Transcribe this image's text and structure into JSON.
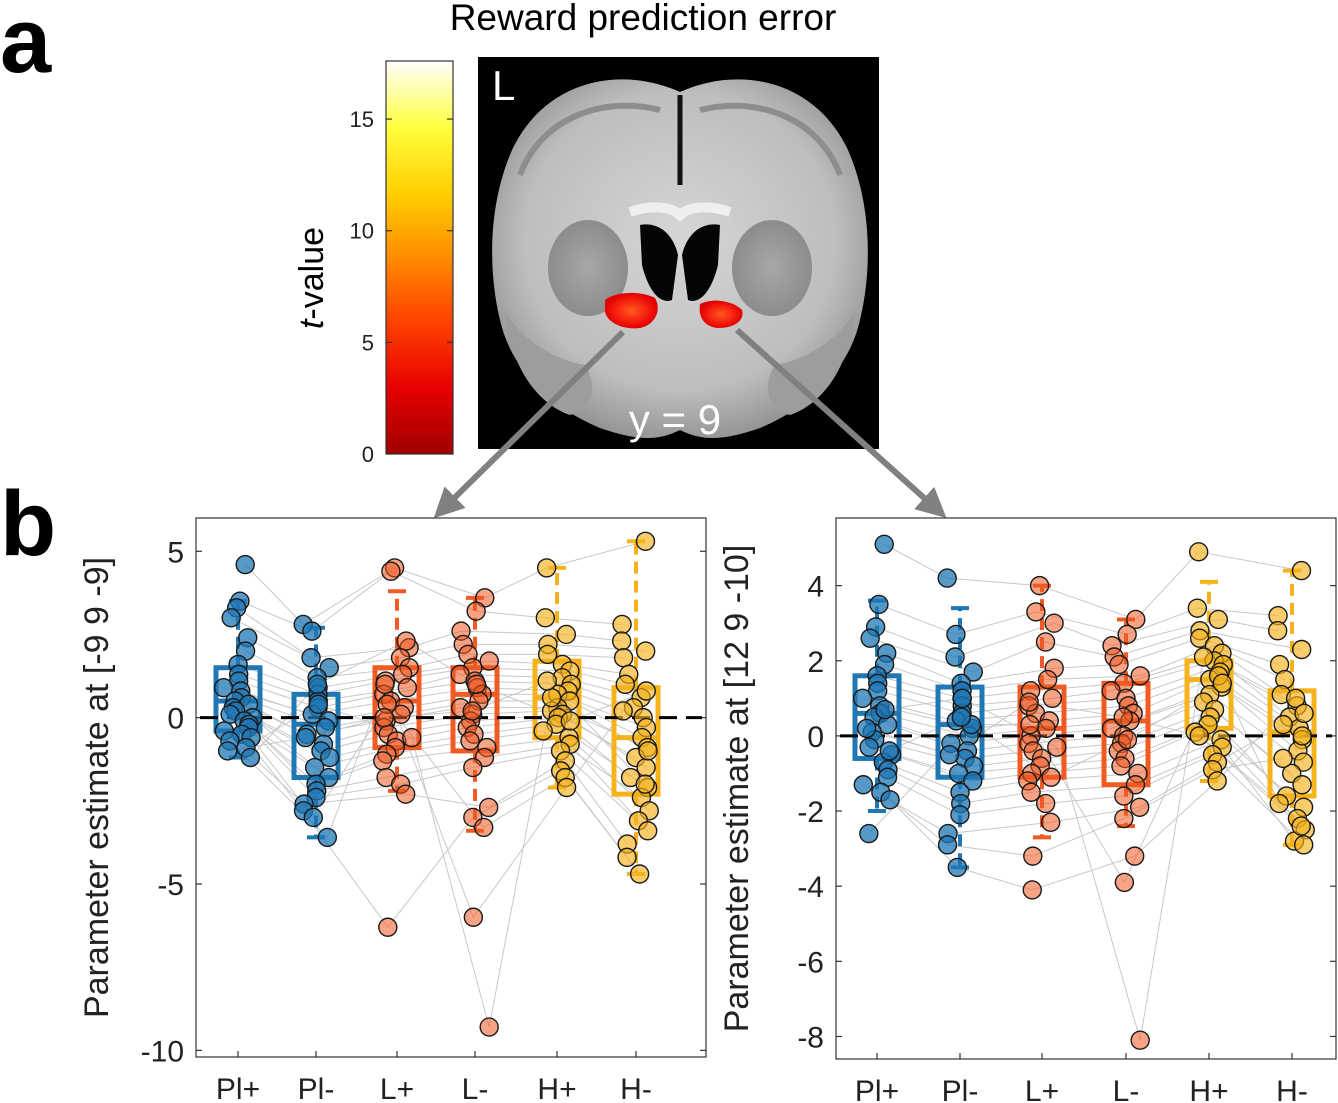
{
  "figure": {
    "panel_a_letter": "a",
    "panel_b_letter": "b",
    "title": "Reward prediction error",
    "colorbar": {
      "label_italic": "t",
      "label_rest": "-value",
      "ticks": [
        "0",
        "5",
        "10",
        "15"
      ],
      "range": [
        0,
        17.6
      ],
      "colormap": [
        "#a00000",
        "#e60000",
        "#ff4000",
        "#ff8c00",
        "#ffd000",
        "#ffff40",
        "#ffffff"
      ]
    },
    "brain": {
      "hemisphere_label": "L",
      "slice_label": "y = 9"
    }
  },
  "colors": {
    "Pl": "#1f77b4",
    "L": "#f15a22",
    "H": "#f6b21b",
    "arrow": "#808080",
    "pair_line": "#c8c8c8"
  },
  "chart_data": [
    {
      "type": "box",
      "ylabel": "Parameter estimate at [-9  9 -9]",
      "categories": [
        "Pl+",
        "Pl-",
        "L+",
        "L-",
        "H+",
        "H-"
      ],
      "ylim": [
        -10.2,
        6.0
      ],
      "yticks": [
        5,
        0,
        -5,
        -10
      ],
      "ytick_labels": [
        "5",
        "0",
        "-5",
        "-10"
      ],
      "zero_line": "dashed",
      "boxes": [
        {
          "q1": -0.4,
          "median": 0.5,
          "q3": 1.5,
          "whisker_low": -1.2,
          "whisker_high": 3.5,
          "outliers": [
            4.6
          ]
        },
        {
          "q1": -1.8,
          "median": -0.2,
          "q3": 0.7,
          "whisker_low": -3.6,
          "whisker_high": 2.7,
          "outliers": []
        },
        {
          "q1": -0.9,
          "median": 0.5,
          "q3": 1.5,
          "whisker_low": -2.2,
          "whisker_high": 3.8,
          "outliers": [
            4.5,
            -6.3
          ]
        },
        {
          "q1": -1.0,
          "median": 0.7,
          "q3": 1.5,
          "whisker_low": -3.4,
          "whisker_high": 3.6,
          "outliers": [
            -6.0,
            -9.3
          ]
        },
        {
          "q1": -0.6,
          "median": 0.6,
          "q3": 1.7,
          "whisker_low": -2.1,
          "whisker_high": 4.5,
          "outliers": []
        },
        {
          "q1": -2.3,
          "median": -0.6,
          "q3": 0.9,
          "whisker_low": -4.7,
          "whisker_high": 5.3,
          "outliers": []
        }
      ],
      "points": [
        [
          4.6,
          3.5,
          3.3,
          3.0,
          2.4,
          2.0,
          1.6,
          1.3,
          1.1,
          0.9,
          0.8,
          0.6,
          0.5,
          0.4,
          0.3,
          0.2,
          0.1,
          0.0,
          -0.1,
          -0.2,
          -0.3,
          -0.4,
          -0.5,
          -0.6,
          -0.7,
          -0.9,
          -1.0,
          -1.2
        ],
        [
          2.8,
          2.6,
          1.8,
          1.5,
          1.2,
          0.9,
          0.7,
          0.5,
          0.3,
          0.1,
          -0.1,
          -0.3,
          -0.5,
          -0.8,
          -1.0,
          -1.2,
          -1.5,
          -1.8,
          -2.0,
          -2.2,
          -2.4,
          -2.6,
          -2.8,
          -3.0,
          -3.6,
          0.4,
          -0.6,
          1.0
        ],
        [
          4.5,
          4.4,
          2.1,
          1.8,
          1.5,
          1.3,
          1.1,
          0.9,
          0.7,
          0.5,
          0.3,
          0.1,
          -0.1,
          -0.3,
          -0.5,
          -0.7,
          -0.9,
          -1.1,
          -1.3,
          -1.8,
          -2.0,
          -2.3,
          -6.3,
          0.4,
          1.0,
          -0.6,
          0.0,
          2.3
        ],
        [
          3.6,
          3.2,
          2.6,
          2.2,
          1.9,
          1.7,
          1.5,
          1.3,
          1.1,
          0.9,
          0.7,
          0.5,
          0.3,
          0.1,
          -0.1,
          -0.3,
          -0.5,
          -0.7,
          -0.9,
          -1.2,
          -1.5,
          -2.7,
          -3.0,
          -3.3,
          -6.0,
          -9.3,
          0.2,
          1.0
        ],
        [
          4.5,
          3.0,
          2.5,
          2.2,
          1.9,
          1.6,
          1.4,
          1.2,
          1.0,
          0.8,
          0.7,
          0.5,
          0.3,
          0.2,
          0.1,
          0.0,
          -0.2,
          -0.4,
          -0.6,
          -0.8,
          -1.0,
          -1.3,
          -1.6,
          -1.8,
          -2.1,
          0.6,
          1.1,
          -0.1
        ],
        [
          5.3,
          2.8,
          2.3,
          2.0,
          1.8,
          1.3,
          1.0,
          0.6,
          0.3,
          0.0,
          -0.3,
          -0.6,
          -0.9,
          -1.2,
          -1.5,
          -1.8,
          -2.1,
          -2.4,
          -2.8,
          -3.1,
          -3.4,
          -3.8,
          -4.2,
          -4.7,
          0.2,
          -1.0,
          -2.0,
          0.8
        ]
      ]
    },
    {
      "type": "box",
      "ylabel": "Parameter estimate at [12  9 -10]",
      "categories": [
        "Pl+",
        "Pl-",
        "L+",
        "L-",
        "H+",
        "H-"
      ],
      "ylim": [
        -8.6,
        5.8
      ],
      "yticks": [
        4,
        2,
        0,
        -2,
        -4,
        -6,
        -8
      ],
      "ytick_labels": [
        "4",
        "2",
        "0",
        "-2",
        "-4",
        "-6",
        "-8"
      ],
      "zero_line": "dashed",
      "boxes": [
        {
          "q1": -0.6,
          "median": 0.6,
          "q3": 1.6,
          "whisker_low": -2.0,
          "whisker_high": 3.6,
          "outliers": [
            5.1,
            -2.6
          ]
        },
        {
          "q1": -1.1,
          "median": 0.3,
          "q3": 1.3,
          "whisker_low": -3.5,
          "whisker_high": 3.4,
          "outliers": [
            4.2
          ]
        },
        {
          "q1": -1.1,
          "median": 0.2,
          "q3": 1.3,
          "whisker_low": -2.7,
          "whisker_high": 4.0,
          "outliers": [
            -3.2,
            -4.1
          ]
        },
        {
          "q1": -1.3,
          "median": 0.4,
          "q3": 1.4,
          "whisker_low": -2.4,
          "whisker_high": 3.1,
          "outliers": [
            -3.2,
            -3.9,
            -8.1
          ]
        },
        {
          "q1": 0.2,
          "median": 1.5,
          "q3": 2.0,
          "whisker_low": -1.2,
          "whisker_high": 4.1,
          "outliers": [
            4.9
          ]
        },
        {
          "q1": -1.6,
          "median": 0.1,
          "q3": 1.2,
          "whisker_low": -2.9,
          "whisker_high": 4.4,
          "outliers": []
        }
      ],
      "points": [
        [
          5.1,
          3.5,
          2.9,
          2.6,
          2.2,
          1.9,
          1.6,
          1.4,
          1.2,
          1.0,
          0.8,
          0.6,
          0.5,
          0.3,
          0.1,
          -0.1,
          -0.3,
          -0.5,
          -0.7,
          -0.9,
          -1.1,
          -1.3,
          -1.5,
          -1.7,
          -2.6,
          0.7,
          0.2,
          -0.4
        ],
        [
          4.2,
          2.7,
          2.1,
          1.7,
          1.4,
          1.2,
          1.0,
          0.8,
          0.6,
          0.4,
          0.2,
          0.0,
          -0.2,
          -0.4,
          -0.6,
          -0.8,
          -1.0,
          -1.2,
          -1.5,
          -1.8,
          -2.1,
          -2.6,
          -2.9,
          -3.5,
          0.3,
          1.0,
          -0.5,
          0.5
        ],
        [
          4.0,
          3.3,
          3.0,
          2.5,
          1.8,
          1.5,
          1.2,
          1.0,
          0.8,
          0.6,
          0.4,
          0.2,
          0.0,
          -0.2,
          -0.4,
          -0.6,
          -0.8,
          -1.0,
          -1.2,
          -1.5,
          -1.8,
          -2.3,
          -3.2,
          -4.1,
          0.3,
          -0.3,
          0.9,
          -1.1
        ],
        [
          3.1,
          2.7,
          2.4,
          2.1,
          1.9,
          1.6,
          1.4,
          1.2,
          1.0,
          0.8,
          0.6,
          0.4,
          0.2,
          0.0,
          -0.2,
          -0.4,
          -0.6,
          -0.8,
          -1.0,
          -1.3,
          -1.6,
          -1.9,
          -2.2,
          -3.2,
          -3.9,
          -8.1,
          0.5,
          -0.1
        ],
        [
          4.9,
          3.4,
          3.1,
          2.8,
          2.6,
          2.4,
          2.2,
          2.0,
          1.9,
          1.7,
          1.5,
          1.3,
          1.1,
          0.9,
          0.7,
          0.5,
          0.3,
          0.1,
          -0.1,
          -0.3,
          -0.5,
          -0.7,
          -0.9,
          -1.2,
          1.6,
          2.1,
          0.0,
          1.4
        ],
        [
          4.4,
          3.2,
          2.8,
          2.3,
          1.9,
          1.5,
          1.1,
          0.8,
          0.5,
          0.2,
          -0.1,
          -0.4,
          -0.7,
          -1.0,
          -1.3,
          -1.6,
          -1.9,
          -2.2,
          -2.5,
          -2.8,
          -2.9,
          0.3,
          -0.6,
          1.0,
          -1.8,
          0.6,
          -2.4,
          0.0
        ]
      ]
    }
  ]
}
